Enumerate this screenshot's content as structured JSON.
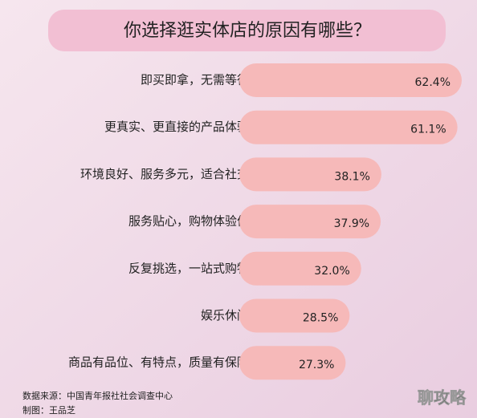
{
  "chart_data": {
    "type": "bar",
    "orientation": "horizontal",
    "title": "你选择逛实体店的原因有哪些？",
    "categories": [
      "即买即拿，无需等待",
      "更真实、更直接的产品体验",
      "环境良好、服务多元，适合社交",
      "服务贴心，购物体验佳",
      "反复挑选，一站式购物",
      "娱乐休闲",
      "商品有品位、有特点，质量有保障"
    ],
    "values": [
      62.4,
      61.1,
      38.1,
      37.9,
      32.0,
      28.5,
      27.3
    ],
    "value_labels": [
      "62.4%",
      "61.1%",
      "38.1%",
      "37.9%",
      "32.0%",
      "28.5%",
      "27.3%"
    ],
    "color": "#f6b9b9",
    "notes": [
      "数据来源：中国青年报社社会调查中心",
      "制图：王品芝"
    ],
    "watermark": "聊攻略"
  }
}
